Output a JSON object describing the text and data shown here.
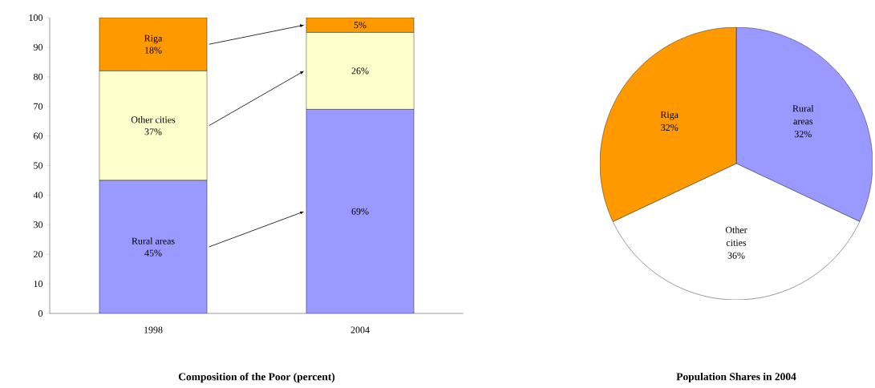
{
  "chart_data": [
    {
      "type": "bar",
      "title": "Composition of the Poor (percent)",
      "categories": [
        "1998",
        "2004"
      ],
      "stacked": true,
      "ylim": [
        0,
        100
      ],
      "yticks": [
        0,
        10,
        20,
        30,
        40,
        50,
        60,
        70,
        80,
        90,
        100
      ],
      "grid": false,
      "legend": false,
      "series": [
        {
          "name": "Rural areas",
          "color": "#9999ff",
          "values": [
            45,
            69
          ],
          "value_labels": [
            "45%",
            "69%"
          ]
        },
        {
          "name": "Other cities",
          "color": "#ffffcc",
          "values": [
            37,
            26
          ],
          "value_labels": [
            "37%",
            "26%"
          ]
        },
        {
          "name": "Riga",
          "color": "#ff9900",
          "values": [
            18,
            5
          ],
          "value_labels": [
            "18%",
            "5%"
          ]
        }
      ]
    },
    {
      "type": "pie",
      "title": "Population Shares in 2004",
      "categories": [
        "Rural areas",
        "Other cities",
        "Riga"
      ],
      "values": [
        32,
        36,
        32
      ],
      "colors": [
        "#9999ff",
        "#ffffff",
        "#ff9900"
      ],
      "value_labels": [
        "32%",
        "36%",
        "32%"
      ]
    }
  ]
}
